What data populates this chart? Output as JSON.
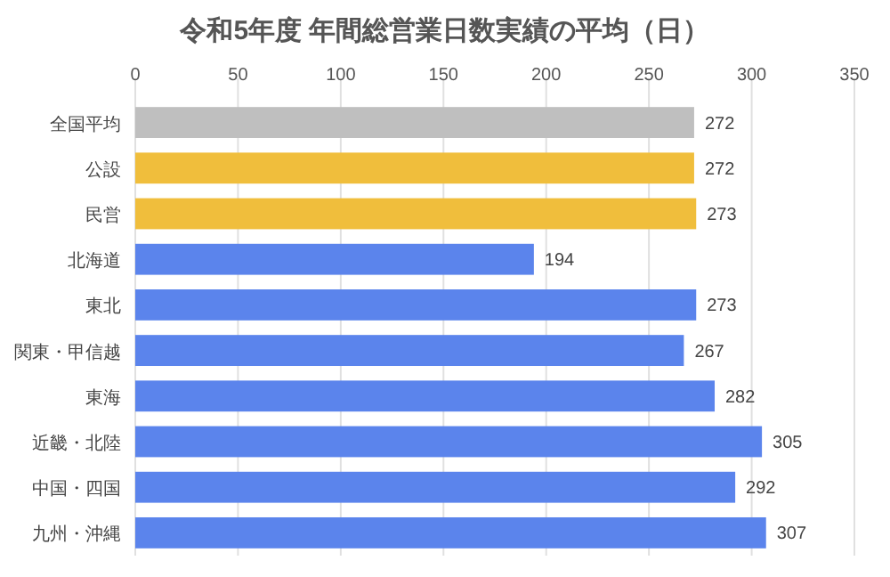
{
  "chart_data": {
    "type": "bar",
    "orientation": "horizontal",
    "title": "令和5年度 年間総営業日数実績の平均（日）",
    "categories": [
      "全国平均",
      "公設",
      "民営",
      "北海道",
      "東北",
      "関東・甲信越",
      "東海",
      "近畿・北陸",
      "中国・四国",
      "九州・沖縄"
    ],
    "values": [
      272,
      272,
      273,
      194,
      273,
      267,
      282,
      305,
      292,
      307
    ],
    "colors": [
      "#bfbfbf",
      "#f0be3c",
      "#f0be3c",
      "#5b84ec",
      "#5b84ec",
      "#5b84ec",
      "#5b84ec",
      "#5b84ec",
      "#5b84ec",
      "#5b84ec"
    ],
    "xlim": [
      0,
      350
    ],
    "xticks": [
      0,
      50,
      100,
      150,
      200,
      250,
      300,
      350
    ],
    "grid": "x",
    "data_labels": true
  }
}
